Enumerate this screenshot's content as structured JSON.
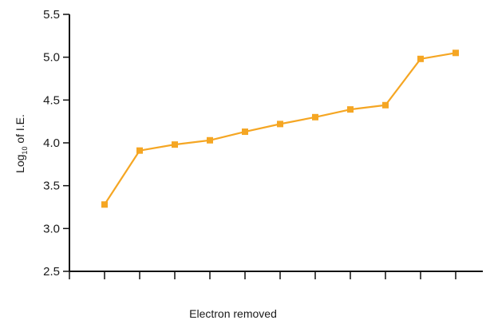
{
  "chart_data": {
    "type": "line",
    "title": "",
    "xlabel": "Electron removed",
    "ylabel": "Log",
    "ylabel_subscript": "10",
    "ylabel_suffix": " of I.E.",
    "ylim": [
      2.5,
      5.5
    ],
    "yticks": [
      "2.5",
      "3.0",
      "3.5",
      "4.0",
      "4.5",
      "5.0",
      "5.5"
    ],
    "x_tick_count": 13,
    "grid": false,
    "series": [
      {
        "color": "#F5A623",
        "x": [
          1,
          2,
          3,
          4,
          5,
          6,
          7,
          8,
          9,
          10,
          11
        ],
        "values": [
          3.28,
          3.91,
          3.98,
          4.03,
          4.13,
          4.22,
          4.3,
          4.39,
          4.44,
          4.98,
          5.05
        ]
      }
    ]
  }
}
